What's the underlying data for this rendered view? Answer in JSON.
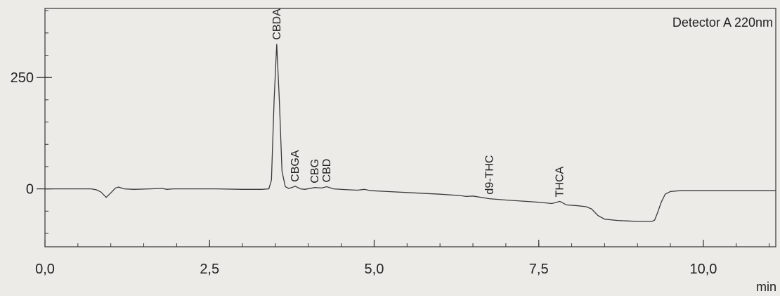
{
  "chart_data": {
    "type": "line",
    "title": "",
    "legend": "Detector A 220nm",
    "xlabel": "min",
    "ylabel": "",
    "xlim": [
      0,
      11.1
    ],
    "ylim": [
      -130,
      405
    ],
    "x_ticks": [
      0,
      2.5,
      5,
      7.5,
      10
    ],
    "x_minor_step": 0.5,
    "x_tick_labels": [
      "0,0",
      "2,5",
      "5,0",
      "7,5",
      "10,0"
    ],
    "y_ticks": [
      0,
      250
    ],
    "y_minor_step": 50,
    "y_tick_labels": [
      "0",
      "250"
    ],
    "grid": false,
    "colors": {
      "trace": "#3a3a3a",
      "axis": "#333333",
      "background": "#ecebe8"
    },
    "peaks": [
      {
        "label": "CBDA",
        "x": 3.52,
        "y": 325
      },
      {
        "label": "CBGA",
        "x": 3.8,
        "y": 6
      },
      {
        "label": "CBG",
        "x": 4.1,
        "y": 3
      },
      {
        "label": "CBD",
        "x": 4.28,
        "y": 5
      },
      {
        "label": "d9-THC",
        "x": 6.75,
        "y": -22
      },
      {
        "label": "THCA",
        "x": 7.82,
        "y": -28
      }
    ],
    "series": [
      {
        "values": [
          [
            0,
            0
          ],
          [
            0.7,
            0
          ],
          [
            0.78,
            -2
          ],
          [
            0.85,
            -7
          ],
          [
            0.93,
            -19
          ],
          [
            1.0,
            -9
          ],
          [
            1.07,
            2
          ],
          [
            1.12,
            4
          ],
          [
            1.2,
            0
          ],
          [
            1.35,
            -1
          ],
          [
            1.6,
            0
          ],
          [
            1.78,
            1
          ],
          [
            1.85,
            -1
          ],
          [
            1.95,
            0
          ],
          [
            2.4,
            0
          ],
          [
            2.6,
            0
          ],
          [
            3.0,
            -1
          ],
          [
            3.3,
            -1
          ],
          [
            3.4,
            0
          ],
          [
            3.44,
            20
          ],
          [
            3.48,
            200
          ],
          [
            3.52,
            325
          ],
          [
            3.56,
            200
          ],
          [
            3.6,
            40
          ],
          [
            3.65,
            5
          ],
          [
            3.7,
            1
          ],
          [
            3.75,
            3
          ],
          [
            3.8,
            6
          ],
          [
            3.88,
            0
          ],
          [
            3.95,
            -1
          ],
          [
            4.1,
            3
          ],
          [
            4.2,
            2
          ],
          [
            4.28,
            5
          ],
          [
            4.38,
            0
          ],
          [
            4.6,
            -2
          ],
          [
            4.75,
            -3
          ],
          [
            4.85,
            -1
          ],
          [
            4.95,
            -4
          ],
          [
            5.2,
            -6
          ],
          [
            5.6,
            -9
          ],
          [
            6.0,
            -12
          ],
          [
            6.3,
            -15
          ],
          [
            6.4,
            -17
          ],
          [
            6.5,
            -16
          ],
          [
            6.75,
            -22
          ],
          [
            7.0,
            -25
          ],
          [
            7.5,
            -30
          ],
          [
            7.7,
            -33
          ],
          [
            7.82,
            -28
          ],
          [
            7.92,
            -36
          ],
          [
            8.1,
            -38
          ],
          [
            8.22,
            -40
          ],
          [
            8.3,
            -45
          ],
          [
            8.4,
            -60
          ],
          [
            8.5,
            -68
          ],
          [
            8.7,
            -71
          ],
          [
            9.0,
            -73
          ],
          [
            9.22,
            -73
          ],
          [
            9.26,
            -70
          ],
          [
            9.3,
            -55
          ],
          [
            9.36,
            -30
          ],
          [
            9.42,
            -12
          ],
          [
            9.5,
            -6
          ],
          [
            9.65,
            -4
          ],
          [
            10.0,
            -4
          ],
          [
            11.1,
            -4
          ]
        ]
      }
    ]
  }
}
